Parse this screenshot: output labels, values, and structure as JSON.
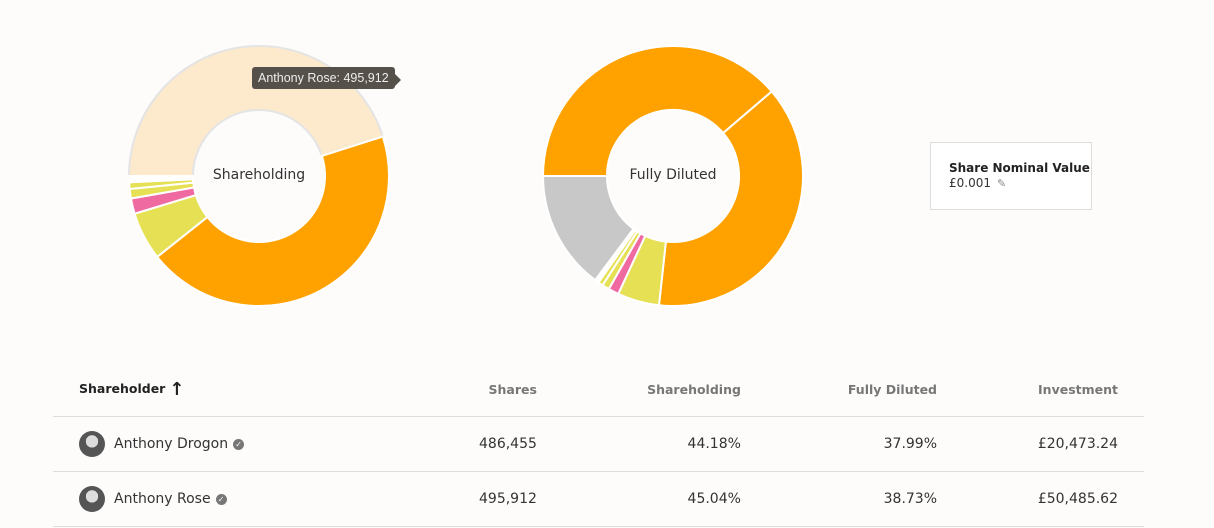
{
  "chart_data": [
    {
      "type": "pie",
      "title": "Shareholding",
      "values": [
        495912,
        486455,
        66000,
        21000,
        13000,
        9000,
        8500
      ],
      "colors": [
        "#fde9cc",
        "#ffa200",
        "#e6e055",
        "#ef6aa0",
        "#e6e055",
        "#e6e055",
        "#ffffff"
      ]
    },
    {
      "type": "pie",
      "title": "Fully Diluted",
      "values": [
        38.73,
        37.99,
        5.2,
        1.3,
        0.9,
        0.6,
        0.5,
        14.78
      ],
      "colors": [
        "#ffa200",
        "#ffa200",
        "#e6e055",
        "#ef6aa0",
        "#e6e055",
        "#e6e055",
        "#ffffff",
        "#c8c8c8"
      ]
    }
  ],
  "tooltip": "Anthony Rose: 495,912",
  "nominal": {
    "title": "Share Nominal Value",
    "value": "£0.001"
  },
  "table": {
    "headers": [
      "Shareholder",
      "Shares",
      "Shareholding",
      "Fully Diluted",
      "Investment"
    ],
    "rows": [
      {
        "name": "Anthony Drogon",
        "shares": "486,455",
        "shareholding": "44.18%",
        "diluted": "37.99%",
        "investment": "£20,473.24"
      },
      {
        "name": "Anthony Rose",
        "shares": "495,912",
        "shareholding": "45.04%",
        "diluted": "38.73%",
        "investment": "£50,485.62"
      }
    ]
  }
}
